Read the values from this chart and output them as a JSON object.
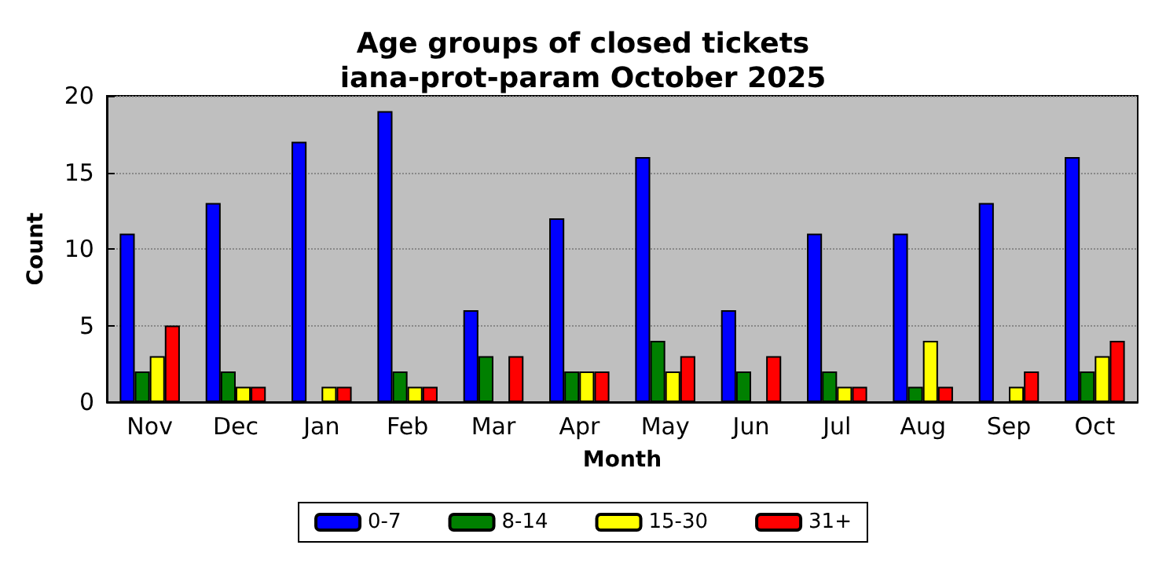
{
  "chart_data": {
    "type": "bar",
    "title": "Age groups of closed tickets",
    "subtitle": "iana-prot-param October 2025",
    "xlabel": "Month",
    "ylabel": "Count",
    "categories": [
      "Nov",
      "Dec",
      "Jan",
      "Feb",
      "Mar",
      "Apr",
      "May",
      "Jun",
      "Jul",
      "Aug",
      "Sep",
      "Oct"
    ],
    "series": [
      {
        "name": "0-7",
        "color": "#0000ff",
        "values": [
          11,
          13,
          17,
          19,
          6,
          12,
          16,
          6,
          11,
          11,
          13,
          16
        ]
      },
      {
        "name": "8-14",
        "color": "#008000",
        "values": [
          2,
          2,
          0,
          2,
          3,
          2,
          4,
          2,
          2,
          1,
          0,
          2
        ]
      },
      {
        "name": "15-30",
        "color": "#ffff00",
        "values": [
          3,
          1,
          1,
          1,
          0,
          2,
          2,
          0,
          1,
          4,
          1,
          3
        ]
      },
      {
        "name": "31+",
        "color": "#ff0000",
        "values": [
          5,
          1,
          1,
          1,
          3,
          2,
          3,
          3,
          1,
          1,
          2,
          4
        ]
      }
    ],
    "ylim": [
      0,
      20
    ],
    "yticks": [
      0,
      5,
      10,
      15,
      20
    ],
    "grid": "y",
    "legend": "bottom"
  }
}
